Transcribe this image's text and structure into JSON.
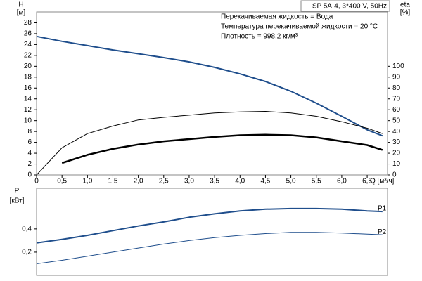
{
  "chart_data": [
    {
      "type": "line",
      "title": "SP 5A-4, 3*400 V, 50Hz",
      "annotations": [
        "Перекачиваемая жидкость = Вода",
        "Температура перекачиваемой жидкости = 20 °C",
        "Плотность = 998.2 кг/м³"
      ],
      "ylabel": "H",
      "ylabel_unit": "[м]",
      "y2label": "eta",
      "y2label_unit": "[%]",
      "xlabel": "Q [м³/ч]",
      "x": [
        0,
        0.5,
        1.0,
        1.5,
        2.0,
        2.5,
        3.0,
        3.5,
        4.0,
        4.5,
        5.0,
        5.5,
        6.0,
        6.5,
        6.8
      ],
      "xlim": [
        0,
        6.9
      ],
      "xticks": [
        0,
        {
          "value": 0.5,
          "label": "0,5"
        },
        {
          "value": 1.0,
          "label": "1,0"
        },
        {
          "value": 1.5,
          "label": "1,5"
        },
        {
          "value": 2.0,
          "label": "2,0"
        },
        {
          "value": 2.5,
          "label": "2,5"
        },
        {
          "value": 3.0,
          "label": "3,0"
        },
        {
          "value": 3.5,
          "label": "3,5"
        },
        {
          "value": 4.0,
          "label": "4,0"
        },
        {
          "value": 4.5,
          "label": "4,5"
        },
        {
          "value": 5.0,
          "label": "5,0"
        },
        {
          "value": 5.5,
          "label": "5,5"
        },
        {
          "value": 6.0,
          "label": "6,0"
        },
        {
          "value": 6.5,
          "label": "6,5"
        }
      ],
      "ylim": [
        0,
        30
      ],
      "yticks": [
        0,
        2,
        4,
        6,
        8,
        10,
        12,
        14,
        16,
        18,
        20,
        22,
        24,
        26,
        28
      ],
      "y2lim": [
        0,
        150
      ],
      "y2ticks": [
        0,
        10,
        20,
        30,
        40,
        50,
        60,
        70,
        80,
        90,
        100
      ],
      "grid": false,
      "series": [
        {
          "color": "#1f4e8c",
          "linewidth": 2,
          "values": [
            25.5,
            24.6,
            23.8,
            23.0,
            22.3,
            21.6,
            20.8,
            19.8,
            18.6,
            17.2,
            15.4,
            13.2,
            10.8,
            8.3,
            7.2
          ]
        },
        {
          "color": "#000000",
          "linewidth": 1,
          "axis": "y2",
          "values": [
            0,
            25,
            38,
            45,
            50.6,
            53,
            55,
            57,
            58,
            58.5,
            57,
            54,
            49,
            43,
            38
          ]
        },
        {
          "color": "#000000",
          "linewidth": 2.5,
          "axis": "y2",
          "values": [
            null,
            11,
            18.5,
            24,
            28,
            31,
            33,
            35,
            36.5,
            37,
            36.5,
            34.5,
            31,
            27.5,
            23
          ]
        }
      ]
    },
    {
      "type": "line",
      "ylabel": "P",
      "ylabel_unit": "[кВт]",
      "x": [
        0,
        0.5,
        1.0,
        1.5,
        2.0,
        2.5,
        3.0,
        3.5,
        4.0,
        4.5,
        5.0,
        5.5,
        6.0,
        6.5,
        6.8
      ],
      "xlim": [
        0,
        6.9
      ],
      "ylim": [
        0,
        0.75
      ],
      "yticks": [
        {
          "value": 0.2,
          "label": "0,2"
        },
        {
          "value": 0.4,
          "label": "0,4"
        }
      ],
      "grid": false,
      "series": [
        {
          "name": "P1",
          "color": "#1f4e8c",
          "linewidth": 2,
          "values": [
            0.28,
            0.31,
            0.345,
            0.385,
            0.425,
            0.46,
            0.5,
            0.53,
            0.555,
            0.57,
            0.575,
            0.575,
            0.57,
            0.555,
            0.55
          ]
        },
        {
          "name": "P2",
          "color": "#1f4e8c",
          "linewidth": 1,
          "values": [
            0.1,
            0.13,
            0.165,
            0.2,
            0.235,
            0.27,
            0.3,
            0.325,
            0.345,
            0.36,
            0.37,
            0.37,
            0.365,
            0.355,
            0.35
          ]
        }
      ]
    }
  ]
}
